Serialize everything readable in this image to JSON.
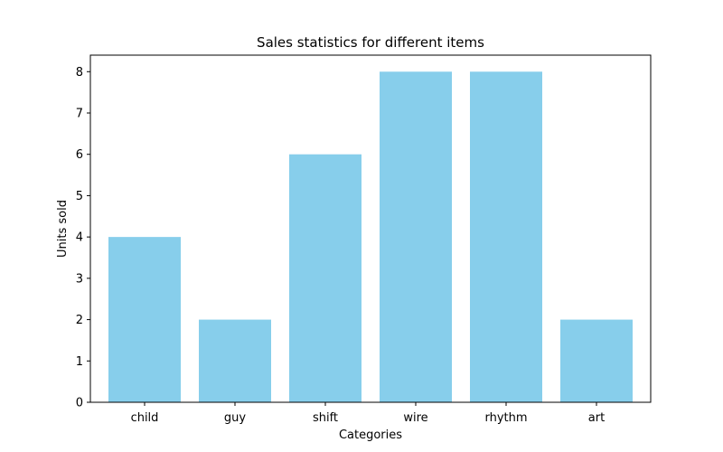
{
  "chart_data": {
    "type": "bar",
    "title": "Sales statistics for different items",
    "xlabel": "Categories",
    "ylabel": "Units sold",
    "categories": [
      "child",
      "guy",
      "shift",
      "wire",
      "rhythm",
      "art"
    ],
    "values": [
      4,
      2,
      6,
      8,
      8,
      2
    ],
    "ylim": [
      0,
      8.4
    ],
    "yticks": [
      0,
      1,
      2,
      3,
      4,
      5,
      6,
      7,
      8
    ],
    "grid": false,
    "legend": "none",
    "bar_color": "#87ceeb"
  }
}
